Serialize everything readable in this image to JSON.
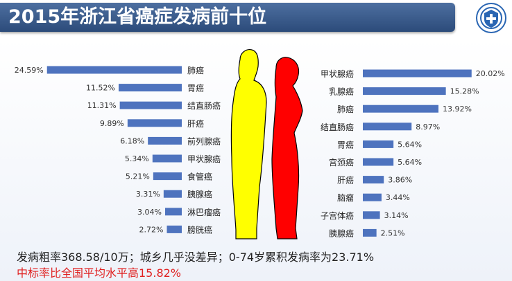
{
  "header": {
    "title": "2015年浙江省癌症发病前十位"
  },
  "colors": {
    "bar": "#4e73be",
    "male_figure": "#ffff00",
    "female_figure": "#ff0000",
    "note_highlight": "#e02020"
  },
  "logo": {
    "icon": "health-emblem-icon"
  },
  "chart_data": [
    {
      "type": "bar",
      "orientation": "horizontal",
      "direction": "right-to-left",
      "categories": [
        "肺癌",
        "胃癌",
        "结直肠癌",
        "肝癌",
        "前列腺癌",
        "甲状腺癌",
        "食管癌",
        "胰腺癌",
        "淋巴瘤癌",
        "膀胱癌"
      ],
      "values": [
        24.59,
        11.52,
        11.31,
        9.89,
        6.18,
        5.34,
        5.21,
        3.31,
        3.04,
        2.72
      ],
      "labels": [
        "24.59%",
        "11.52%",
        "11.31%",
        "9.89%",
        "6.18%",
        "5.34%",
        "5.21%",
        "3.31%",
        "3.04%",
        "2.72%"
      ],
      "grid": false
    },
    {
      "type": "bar",
      "orientation": "horizontal",
      "direction": "left-to-right",
      "categories": [
        "甲状腺癌",
        "乳腺癌",
        "肺癌",
        "结直肠癌",
        "胃癌",
        "宫颈癌",
        "肝癌",
        "脑瘤",
        "子宫体癌",
        "胰腺癌"
      ],
      "values": [
        20.02,
        15.28,
        13.92,
        8.97,
        5.64,
        5.64,
        3.86,
        3.44,
        3.14,
        2.51
      ],
      "labels": [
        "20.02%",
        "15.28%",
        "13.92%",
        "8.97%",
        "5.64%",
        "5.64%",
        "3.86%",
        "3.44%",
        "3.14%",
        "2.51%"
      ],
      "grid": false
    }
  ],
  "notes": {
    "line1": "发病粗率368.58/10万；城乡几乎没差异；0-74岁累积发病率为23.71%",
    "line2": "中标率比全国平均水平高15.82%"
  }
}
